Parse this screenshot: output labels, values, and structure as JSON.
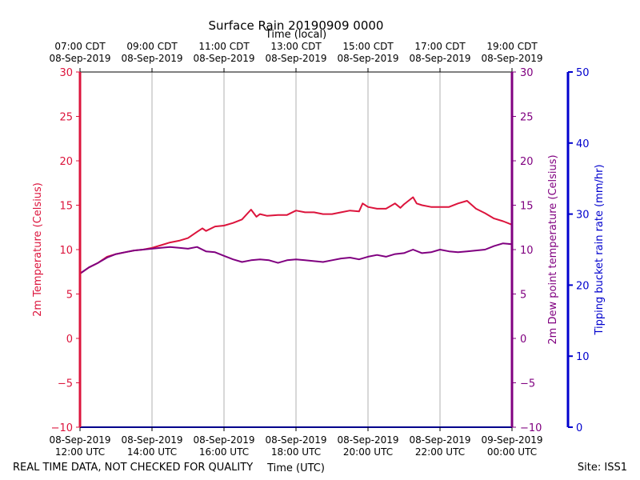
{
  "chart_data": {
    "type": "line",
    "title": "Surface Rain 20190909 0000",
    "top_xlabel": "Time (local)",
    "xlabel": "Time (UTC)",
    "ylabel_left": "2m Temperature (Celsius)",
    "ylabel_right1": "2m Dew point temperature (Celsius)",
    "ylabel_right2": "Tipping bucket rain rate (mm/hr)",
    "footer_left": "REAL TIME DATA, NOT CHECKED FOR QUALITY",
    "footer_right": "Site: ISS1",
    "xlim_hours_utc": [
      12,
      24
    ],
    "ylim_temperature": [
      -10,
      30
    ],
    "ylim_rain": [
      0,
      50
    ],
    "grid": "vertical",
    "colors": {
      "temperature": "#dc143c",
      "dewpoint": "#800080",
      "rain": "#0000cd",
      "grid": "#b0b0b0"
    },
    "bottom_ticks": [
      {
        "x": 12,
        "line1": "08-Sep-2019",
        "line2": "12:00 UTC"
      },
      {
        "x": 14,
        "line1": "08-Sep-2019",
        "line2": "14:00 UTC"
      },
      {
        "x": 16,
        "line1": "08-Sep-2019",
        "line2": "16:00 UTC"
      },
      {
        "x": 18,
        "line1": "08-Sep-2019",
        "line2": "18:00 UTC"
      },
      {
        "x": 20,
        "line1": "08-Sep-2019",
        "line2": "20:00 UTC"
      },
      {
        "x": 22,
        "line1": "08-Sep-2019",
        "line2": "22:00 UTC"
      },
      {
        "x": 24,
        "line1": "09-Sep-2019",
        "line2": "00:00 UTC"
      }
    ],
    "top_ticks": [
      {
        "x": 12,
        "line1": "07:00 CDT",
        "line2": "08-Sep-2019"
      },
      {
        "x": 14,
        "line1": "09:00 CDT",
        "line2": "08-Sep-2019"
      },
      {
        "x": 16,
        "line1": "11:00 CDT",
        "line2": "08-Sep-2019"
      },
      {
        "x": 18,
        "line1": "13:00 CDT",
        "line2": "08-Sep-2019"
      },
      {
        "x": 20,
        "line1": "15:00 CDT",
        "line2": "08-Sep-2019"
      },
      {
        "x": 22,
        "line1": "17:00 CDT",
        "line2": "08-Sep-2019"
      },
      {
        "x": 24,
        "line1": "19:00 CDT",
        "line2": "08-Sep-2019"
      }
    ],
    "temp_ticks": [
      "30",
      "25",
      "20",
      "15",
      "10",
      "5",
      "0",
      "−5",
      "−10"
    ],
    "temp_tick_values": [
      30,
      25,
      20,
      15,
      10,
      5,
      0,
      -5,
      -10
    ],
    "rain_ticks": [
      "50",
      "40",
      "30",
      "20",
      "10",
      "0"
    ],
    "rain_tick_values": [
      50,
      40,
      30,
      20,
      10,
      0
    ],
    "series": [
      {
        "key": "temperature",
        "x": [
          12.0,
          12.25,
          12.5,
          12.75,
          13.0,
          13.25,
          13.5,
          13.75,
          14.0,
          14.25,
          14.5,
          14.75,
          15.0,
          15.25,
          15.4,
          15.5,
          15.75,
          16.0,
          16.25,
          16.5,
          16.75,
          16.9,
          17.0,
          17.2,
          17.5,
          17.75,
          18.0,
          18.25,
          18.5,
          18.75,
          19.0,
          19.25,
          19.5,
          19.75,
          19.85,
          20.0,
          20.25,
          20.5,
          20.75,
          20.9,
          21.0,
          21.25,
          21.35,
          21.5,
          21.75,
          22.0,
          22.25,
          22.5,
          22.75,
          23.0,
          23.25,
          23.5,
          23.75,
          24.0
        ],
        "values": [
          7.3,
          8.0,
          8.5,
          9.2,
          9.5,
          9.7,
          9.9,
          10.0,
          10.2,
          10.5,
          10.8,
          11.0,
          11.3,
          12.0,
          12.4,
          12.1,
          12.6,
          12.7,
          13.0,
          13.4,
          14.5,
          13.7,
          14.0,
          13.8,
          13.9,
          13.9,
          14.4,
          14.2,
          14.2,
          14.0,
          14.0,
          14.2,
          14.4,
          14.3,
          15.2,
          14.8,
          14.6,
          14.6,
          15.2,
          14.7,
          15.1,
          15.9,
          15.2,
          15.0,
          14.8,
          14.8,
          14.8,
          15.2,
          15.5,
          14.6,
          14.1,
          13.5,
          13.2,
          12.8
        ]
      },
      {
        "key": "dewpoint",
        "x": [
          12.0,
          12.25,
          12.5,
          12.75,
          13.0,
          13.25,
          13.5,
          13.75,
          14.0,
          14.25,
          14.5,
          14.75,
          15.0,
          15.25,
          15.5,
          15.75,
          16.0,
          16.25,
          16.5,
          16.75,
          17.0,
          17.25,
          17.5,
          17.75,
          18.0,
          18.25,
          18.5,
          18.75,
          19.0,
          19.25,
          19.5,
          19.75,
          20.0,
          20.25,
          20.5,
          20.75,
          21.0,
          21.25,
          21.5,
          21.75,
          22.0,
          22.25,
          22.5,
          22.75,
          23.0,
          23.25,
          23.5,
          23.75,
          24.0
        ],
        "values": [
          7.3,
          8.0,
          8.5,
          9.1,
          9.5,
          9.7,
          9.9,
          10.0,
          10.1,
          10.2,
          10.3,
          10.2,
          10.1,
          10.3,
          9.8,
          9.7,
          9.3,
          8.9,
          8.6,
          8.8,
          8.9,
          8.8,
          8.5,
          8.8,
          8.9,
          8.8,
          8.7,
          8.6,
          8.8,
          9.0,
          9.1,
          8.9,
          9.2,
          9.4,
          9.2,
          9.5,
          9.6,
          10.0,
          9.6,
          9.7,
          10.0,
          9.8,
          9.7,
          9.8,
          9.9,
          10.0,
          10.4,
          10.7,
          10.6
        ]
      }
    ]
  }
}
